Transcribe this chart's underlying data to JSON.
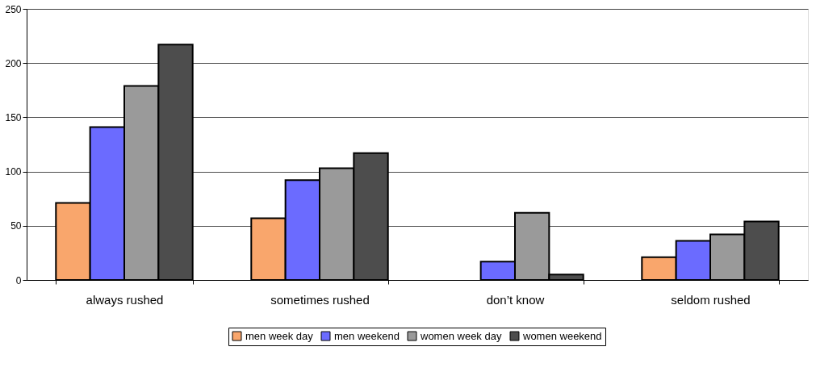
{
  "chart_data": {
    "type": "bar",
    "categories": [
      "always rushed",
      "sometimes rushed",
      "don’t know",
      "seldom rushed"
    ],
    "series": [
      {
        "name": "men week day",
        "color": "#f9a66c",
        "values": [
          71,
          57,
          null,
          21
        ]
      },
      {
        "name": "men weekend",
        "color": "#6b6bff",
        "values": [
          141,
          92,
          17,
          36
        ]
      },
      {
        "name": "women week day",
        "color": "#9a9a9a",
        "values": [
          179,
          103,
          62,
          42
        ]
      },
      {
        "name": "women weekend",
        "color": "#4d4d4d",
        "values": [
          217,
          117,
          5,
          54
        ]
      }
    ],
    "ylim": [
      0,
      250
    ],
    "yticks": [
      0,
      50,
      100,
      150,
      200,
      250
    ],
    "grid": "y",
    "legend": "bottom"
  }
}
